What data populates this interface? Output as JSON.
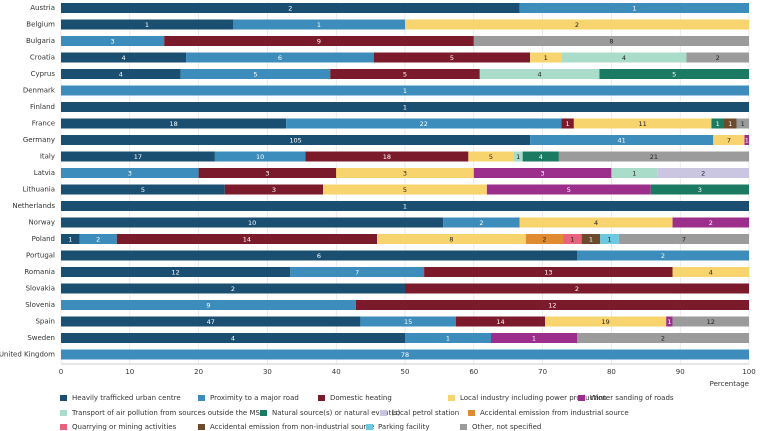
{
  "chart_data": {
    "type": "bar",
    "orientation": "horizontal",
    "stack": "percent",
    "xlabel": "Percentage",
    "xlim": [
      0,
      100
    ],
    "xticks": [
      0,
      10,
      20,
      30,
      40,
      50,
      60,
      70,
      80,
      90,
      100
    ],
    "grid": true,
    "categories": [
      "Austria",
      "Belgium",
      "Bulgaria",
      "Croatia",
      "Cyprus",
      "Denmark",
      "Finland",
      "France",
      "Germany",
      "Italy",
      "Latvia",
      "Lithuania",
      "Netherlands",
      "Norway",
      "Poland",
      "Portugal",
      "Romania",
      "Slovakia",
      "Slovenia",
      "Spain",
      "Sweden",
      "United Kingdom"
    ],
    "series": [
      {
        "name": "Heavily trafficked urban centre",
        "color": "#1b4f72",
        "values": [
          2,
          1,
          null,
          4,
          4,
          null,
          1,
          18,
          105,
          17,
          null,
          5,
          1,
          10,
          1,
          6,
          12,
          2,
          null,
          47,
          4,
          null
        ]
      },
      {
        "name": "Proximity to a major road",
        "color": "#3c8dbc",
        "values": [
          1,
          1,
          3,
          6,
          5,
          1,
          null,
          22,
          41,
          10,
          3,
          null,
          null,
          2,
          2,
          2,
          7,
          null,
          9,
          15,
          1,
          78
        ]
      },
      {
        "name": "Domestic heating",
        "color": "#7b1a2a",
        "values": [
          null,
          null,
          9,
          5,
          5,
          null,
          null,
          1,
          null,
          18,
          3,
          3,
          null,
          null,
          14,
          null,
          13,
          2,
          12,
          14,
          null,
          null
        ]
      },
      {
        "name": "Local industry including power production",
        "color": "#f7d46e",
        "values": [
          null,
          2,
          null,
          1,
          null,
          null,
          null,
          11,
          7,
          5,
          3,
          5,
          null,
          4,
          8,
          null,
          4,
          null,
          null,
          19,
          null,
          null
        ]
      },
      {
        "name": "Winter sanding of roads",
        "color": "#9c2e8c",
        "values": [
          null,
          null,
          null,
          null,
          null,
          null,
          null,
          null,
          1,
          null,
          3,
          5,
          null,
          2,
          null,
          null,
          null,
          null,
          null,
          1,
          1,
          null
        ]
      },
      {
        "name": "Transport of air pollution from sources outside the MS",
        "color": "#a9dcc9",
        "values": [
          null,
          null,
          null,
          4,
          4,
          null,
          null,
          null,
          null,
          1,
          1,
          null,
          null,
          null,
          null,
          null,
          null,
          null,
          null,
          null,
          null,
          null
        ]
      },
      {
        "name": "Natural source(s) or natural event(s)",
        "color": "#1b7a62",
        "values": [
          null,
          null,
          null,
          null,
          5,
          null,
          null,
          1,
          null,
          4,
          null,
          3,
          null,
          null,
          null,
          null,
          null,
          null,
          null,
          null,
          null,
          null
        ]
      },
      {
        "name": "Local petrol station",
        "color": "#cac6e2",
        "values": [
          null,
          null,
          null,
          null,
          null,
          null,
          null,
          null,
          null,
          null,
          2,
          null,
          null,
          null,
          null,
          null,
          null,
          null,
          null,
          null,
          null,
          null
        ]
      },
      {
        "name": "Accidental emission from industrial source",
        "color": "#e08b32",
        "values": [
          null,
          null,
          null,
          null,
          null,
          null,
          null,
          null,
          null,
          null,
          null,
          null,
          null,
          null,
          2,
          null,
          null,
          null,
          null,
          null,
          null,
          null
        ]
      },
      {
        "name": "Quarrying or mining activities",
        "color": "#e8627b",
        "values": [
          null,
          null,
          null,
          null,
          null,
          null,
          null,
          null,
          null,
          null,
          null,
          null,
          null,
          null,
          1,
          null,
          null,
          null,
          null,
          null,
          null,
          null
        ]
      },
      {
        "name": "Accidental emission from non-industrial source",
        "color": "#6b4b2b",
        "values": [
          null,
          null,
          null,
          null,
          null,
          null,
          null,
          1,
          null,
          null,
          null,
          null,
          null,
          null,
          1,
          null,
          null,
          null,
          null,
          null,
          null,
          null
        ]
      },
      {
        "name": "Parking facility",
        "color": "#6dc9e2",
        "values": [
          null,
          null,
          null,
          null,
          null,
          null,
          null,
          null,
          null,
          null,
          null,
          null,
          null,
          null,
          1,
          null,
          null,
          null,
          null,
          null,
          null,
          null
        ]
      },
      {
        "name": "Other, not specified",
        "color": "#9b9b9b",
        "values": [
          null,
          null,
          8,
          2,
          null,
          null,
          null,
          1,
          null,
          21,
          null,
          null,
          null,
          null,
          7,
          null,
          null,
          null,
          null,
          12,
          2,
          null
        ]
      }
    ]
  }
}
